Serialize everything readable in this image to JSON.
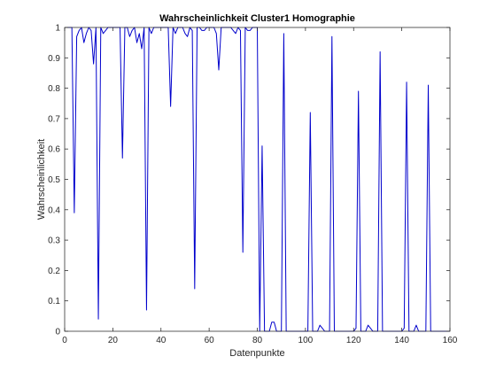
{
  "chart_data": {
    "type": "line",
    "title": "Wahrscheinlichkeit Cluster1 Homographie",
    "xlabel": "Datenpunkte",
    "ylabel": "Wahrscheinlichkeit",
    "xlim": [
      0,
      160
    ],
    "ylim": [
      0,
      1
    ],
    "xticks": [
      "0",
      "20",
      "40",
      "60",
      "80",
      "100",
      "120",
      "140",
      "160"
    ],
    "yticks": [
      "0",
      "0.1",
      "0.2",
      "0.3",
      "0.4",
      "0.5",
      "0.6",
      "0.7",
      "0.8",
      "0.9",
      "1"
    ],
    "grid": false,
    "series": [
      {
        "color": "#0000cc",
        "x": [
          1,
          2,
          3,
          4,
          5,
          6,
          7,
          8,
          9,
          10,
          11,
          12,
          13,
          14,
          15,
          16,
          17,
          18,
          19,
          20,
          21,
          22,
          23,
          24,
          25,
          26,
          27,
          28,
          29,
          30,
          31,
          32,
          33,
          34,
          35,
          36,
          37,
          38,
          39,
          40,
          41,
          42,
          43,
          44,
          45,
          46,
          47,
          48,
          49,
          50,
          51,
          52,
          53,
          54,
          55,
          56,
          57,
          58,
          59,
          60,
          61,
          62,
          63,
          64,
          65,
          66,
          67,
          68,
          69,
          70,
          71,
          72,
          73,
          74,
          75,
          76,
          77,
          78,
          79,
          80,
          81,
          82,
          83,
          84,
          85,
          86,
          87,
          88,
          89,
          90,
          91,
          92,
          93,
          94,
          95,
          96,
          97,
          98,
          99,
          100,
          101,
          102,
          103,
          104,
          105,
          106,
          107,
          108,
          109,
          110,
          111,
          112,
          113,
          114,
          115,
          116,
          117,
          118,
          119,
          120,
          121,
          122,
          123,
          124,
          125,
          126,
          127,
          128,
          129,
          130,
          131,
          132,
          133,
          134,
          135,
          136,
          137,
          138,
          139,
          140,
          141,
          142,
          143,
          144,
          145,
          146,
          147,
          148,
          149,
          150,
          151,
          152,
          153,
          154,
          155,
          156,
          157,
          158,
          159,
          160
        ],
        "y": [
          1,
          1,
          1,
          0.39,
          0.97,
          0.99,
          1,
          0.95,
          0.98,
          1,
          0.99,
          0.88,
          1,
          0.04,
          1,
          0.98,
          0.99,
          1,
          1,
          1,
          1,
          1,
          1,
          0.57,
          1,
          1,
          0.97,
          0.99,
          1,
          0.95,
          0.98,
          0.93,
          1,
          0.07,
          1,
          0.98,
          1,
          1,
          1,
          1,
          1,
          1,
          1,
          0.74,
          1,
          0.98,
          1,
          1,
          1,
          0.98,
          0.97,
          1,
          0.99,
          0.14,
          1,
          1,
          0.99,
          0.99,
          1,
          1,
          1,
          1,
          0.98,
          0.86,
          1,
          1,
          1,
          1,
          1,
          0.99,
          0.98,
          1,
          0.99,
          0.26,
          1,
          0.99,
          0.99,
          1,
          1,
          1,
          0,
          0.61,
          0,
          0,
          0,
          0.03,
          0.03,
          0,
          0,
          0,
          0.98,
          0,
          0,
          0,
          0,
          0,
          0,
          0,
          0,
          0,
          0,
          0.72,
          0,
          0,
          0,
          0.02,
          0.01,
          0,
          0,
          0,
          0.97,
          0,
          0,
          0,
          0,
          0,
          0,
          0,
          0,
          0,
          0.01,
          0.79,
          0,
          0,
          0,
          0.02,
          0.01,
          0,
          0,
          0,
          0.92,
          0,
          0,
          0,
          0,
          0,
          0,
          0,
          0,
          0,
          0.01,
          0.82,
          0,
          0,
          0,
          0.02,
          0,
          0,
          0,
          0,
          0.81,
          0,
          0,
          0,
          0,
          0,
          0,
          0,
          0,
          0
        ]
      }
    ]
  }
}
